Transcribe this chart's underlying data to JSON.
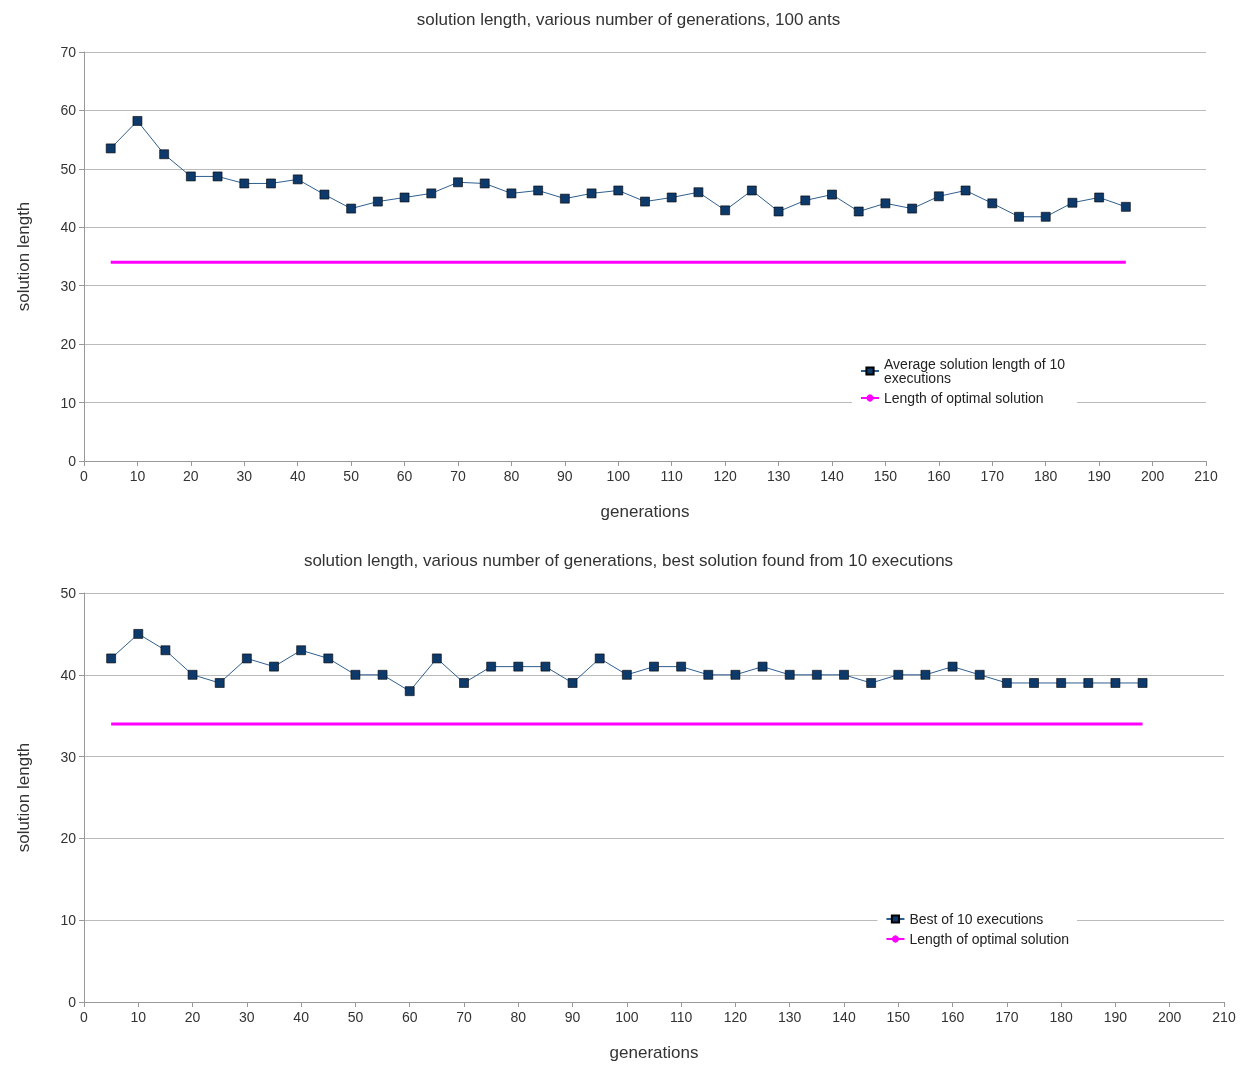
{
  "chart_data": [
    {
      "type": "line",
      "title": "solution length, various number of generations, 100 ants",
      "xlabel": "generations",
      "ylabel": "solution length",
      "xlim": [
        0,
        210
      ],
      "xticks": [
        0,
        10,
        20,
        30,
        40,
        50,
        60,
        70,
        80,
        90,
        100,
        110,
        120,
        130,
        140,
        150,
        160,
        170,
        180,
        190,
        200,
        210
      ],
      "ylim": [
        0,
        70
      ],
      "yticks": [
        0,
        10,
        20,
        30,
        40,
        50,
        60,
        70
      ],
      "grid": "y",
      "legend": "bottom right",
      "series": [
        {
          "name": "Average solution length of 10 executions",
          "color": "#0d3a6b",
          "marker": "square",
          "x": [
            5,
            10,
            15,
            20,
            25,
            30,
            35,
            40,
            45,
            50,
            55,
            60,
            65,
            70,
            75,
            80,
            85,
            90,
            95,
            100,
            105,
            110,
            115,
            120,
            125,
            130,
            135,
            140,
            145,
            150,
            155,
            160,
            165,
            170,
            175,
            180,
            185,
            190,
            195
          ],
          "values": [
            53.5,
            58.2,
            52.5,
            48.7,
            48.7,
            47.5,
            47.5,
            48.2,
            45.6,
            43.2,
            44.4,
            45.1,
            45.8,
            47.7,
            47.5,
            45.8,
            46.3,
            44.9,
            45.8,
            46.3,
            44.4,
            45.1,
            46,
            42.9,
            46.3,
            42.7,
            44.6,
            45.6,
            42.7,
            44.1,
            43.2,
            45.3,
            46.3,
            44.1,
            41.8,
            41.8,
            44.2,
            45.1,
            43.5
          ]
        },
        {
          "name": "Length of optimal solution",
          "color": "#ff00ff",
          "marker": "none",
          "x": [
            5,
            195
          ],
          "values": [
            34,
            34
          ]
        }
      ]
    },
    {
      "type": "line",
      "title": "solution length, various number of generations, best solution found from 10 executions",
      "xlabel": "generations",
      "ylabel": "solution length",
      "xlim": [
        0,
        210
      ],
      "xticks": [
        0,
        10,
        20,
        30,
        40,
        50,
        60,
        70,
        80,
        90,
        100,
        110,
        120,
        130,
        140,
        150,
        160,
        170,
        180,
        190,
        200,
        210
      ],
      "ylim": [
        0,
        50
      ],
      "yticks": [
        0,
        10,
        20,
        30,
        40,
        50
      ],
      "grid": "y",
      "legend": "bottom right",
      "series": [
        {
          "name": "Best of 10 executions",
          "color": "#0d3a6b",
          "marker": "square",
          "x": [
            5,
            10,
            15,
            20,
            25,
            30,
            35,
            40,
            45,
            50,
            55,
            60,
            65,
            70,
            75,
            80,
            85,
            90,
            95,
            100,
            105,
            110,
            115,
            120,
            125,
            130,
            135,
            140,
            145,
            150,
            155,
            160,
            165,
            170,
            175,
            180,
            185,
            190,
            195
          ],
          "values": [
            42,
            45,
            43,
            40,
            39,
            42,
            41,
            43,
            42,
            40,
            40,
            38,
            42,
            39,
            41,
            41,
            41,
            39,
            42,
            40,
            41,
            41,
            40,
            40,
            41,
            40,
            40,
            40,
            39,
            40,
            40,
            41,
            40,
            39,
            39,
            39,
            39,
            39,
            39
          ]
        },
        {
          "name": "Length of optimal solution",
          "color": "#ff00ff",
          "marker": "none",
          "x": [
            5,
            195
          ],
          "values": [
            34,
            34
          ]
        }
      ]
    }
  ]
}
